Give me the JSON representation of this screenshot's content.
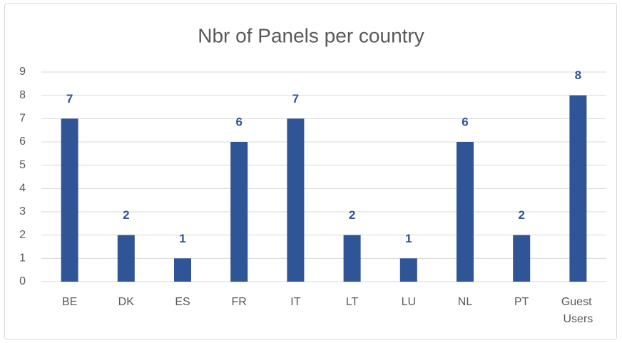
{
  "chart_data": {
    "type": "bar",
    "title": "Nbr of Panels per country",
    "categories": [
      "BE",
      "DK",
      "ES",
      "FR",
      "IT",
      "LT",
      "LU",
      "NL",
      "PT",
      "Guest Users"
    ],
    "values": [
      7,
      2,
      1,
      6,
      7,
      2,
      1,
      6,
      2,
      8
    ],
    "color": "#2f5597",
    "ylim": [
      0,
      9
    ],
    "yticks": [
      0,
      1,
      2,
      3,
      4,
      5,
      6,
      7,
      8,
      9
    ],
    "grid": true,
    "data_labels": true
  }
}
